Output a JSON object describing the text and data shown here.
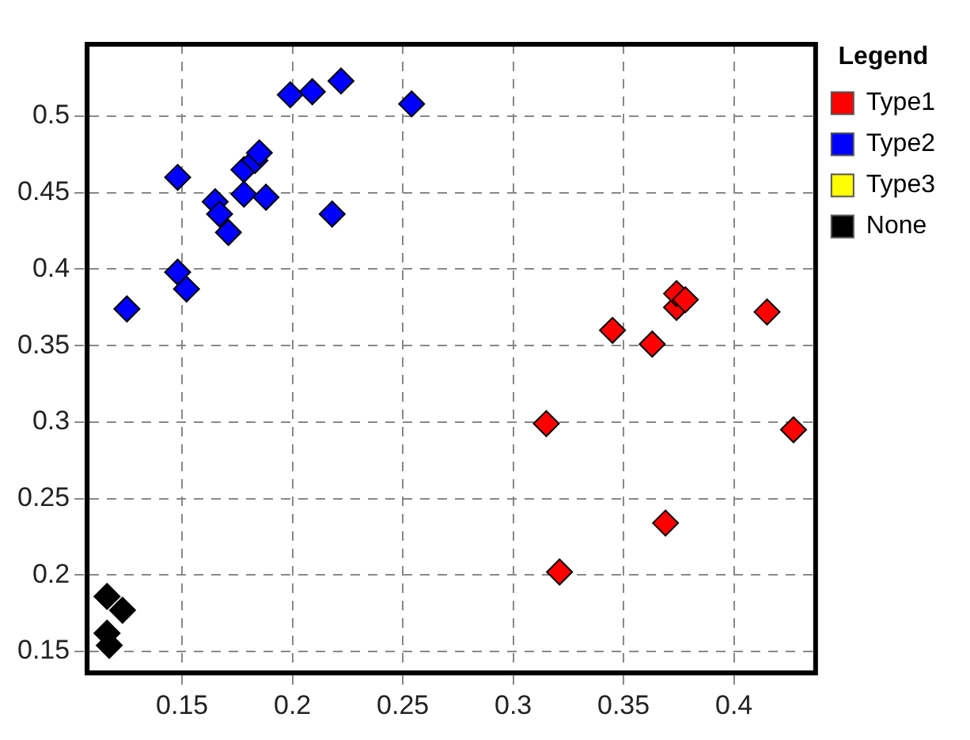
{
  "chart_data": {
    "type": "scatter",
    "legend_title": "Legend",
    "legend": "right",
    "grid": true,
    "marker": "diamond",
    "xlim": [
      0.107,
      0.437
    ],
    "xticks": [
      0.15,
      0.2,
      0.25,
      0.3,
      0.35,
      0.4
    ],
    "ylim": [
      0.136,
      0.547
    ],
    "yticks": [
      0.15,
      0.2,
      0.25,
      0.3,
      0.35,
      0.4,
      0.45,
      0.5
    ],
    "series": [
      {
        "name": "Type1",
        "color": "#ff0000",
        "x": [
          0.315,
          0.321,
          0.345,
          0.363,
          0.374,
          0.374,
          0.378,
          0.369,
          0.415,
          0.427
        ],
        "values": [
          0.299,
          0.202,
          0.36,
          0.351,
          0.375,
          0.384,
          0.38,
          0.234,
          0.372,
          0.295
        ]
      },
      {
        "name": "Type2",
        "color": "#0000ff",
        "x": [
          0.125,
          0.148,
          0.148,
          0.152,
          0.165,
          0.167,
          0.171,
          0.178,
          0.178,
          0.183,
          0.185,
          0.188,
          0.199,
          0.209,
          0.222,
          0.218,
          0.254
        ],
        "values": [
          0.374,
          0.46,
          0.398,
          0.387,
          0.444,
          0.436,
          0.424,
          0.465,
          0.449,
          0.471,
          0.476,
          0.447,
          0.514,
          0.516,
          0.523,
          0.436,
          0.508
        ]
      },
      {
        "name": "Type3",
        "color": "#ffff00"
      },
      {
        "name": "None",
        "color": "#000000",
        "x": [
          0.116,
          0.123,
          0.116,
          0.117
        ],
        "values": [
          0.186,
          0.177,
          0.162,
          0.154
        ]
      }
    ]
  }
}
